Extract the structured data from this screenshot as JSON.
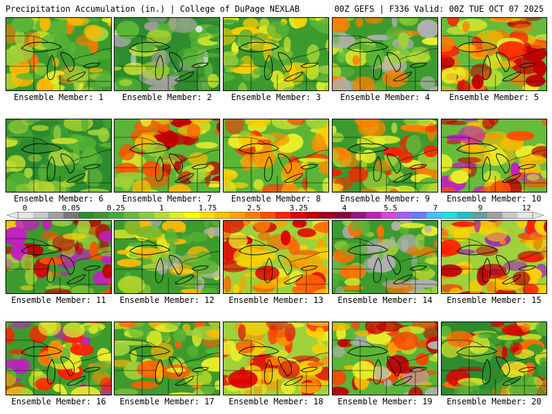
{
  "header": {
    "left_title": "Precipitation Accumulation (in.) | College of DuPage NEXLAB",
    "right_title": "00Z GEFS | F336 Valid: 00Z TUE OCT 07 2025"
  },
  "colorbar": {
    "tick_labels": [
      "0",
      "0.05",
      "0.25",
      "1",
      "1.75",
      "2.5",
      "3.25",
      "4",
      "5.5",
      "7",
      "9",
      "12"
    ],
    "colors": [
      "#e6e6e6",
      "#c8c8c8",
      "#a0a0a0",
      "#787878",
      "#2e8b2e",
      "#3a9a30",
      "#4aa83a",
      "#66bb3a",
      "#8ccc3a",
      "#b4dc30",
      "#e0ee28",
      "#ffff00",
      "#ffe000",
      "#ffc000",
      "#ffa000",
      "#ff8000",
      "#ff5000",
      "#ff2000",
      "#e00000",
      "#c00000",
      "#a00020",
      "#900040",
      "#a01080",
      "#c020c0",
      "#e040e0",
      "#a060ff",
      "#6080ff",
      "#40c0ff",
      "#20e0e0",
      "#20c0c0",
      "#60a0a0",
      "#a0a0a0",
      "#c8c8c8",
      "#e6e6e6"
    ]
  },
  "panels": [
    {
      "label": "Ensemble Member: 1",
      "palette": [
        "#3d9b2e",
        "#5ab536",
        "#9fd13a",
        "#e8ee2a",
        "#ffb800",
        "#ff7800"
      ]
    },
    {
      "label": "Ensemble Member: 2",
      "palette": [
        "#2e8b2e",
        "#3d9b2e",
        "#5ab536",
        "#a0a0a0",
        "#e0e0e0",
        "#c8e030"
      ]
    },
    {
      "label": "Ensemble Member: 3",
      "palette": [
        "#3d9b2e",
        "#5ab536",
        "#9fd13a",
        "#e8ee2a",
        "#ffd000",
        "#4aa83a"
      ]
    },
    {
      "label": "Ensemble Member: 4",
      "palette": [
        "#3d9b2e",
        "#5ab536",
        "#9fd13a",
        "#b0b0b0",
        "#e8ee2a",
        "#ff8000"
      ]
    },
    {
      "label": "Ensemble Member: 5",
      "palette": [
        "#66bb3a",
        "#e8ee2a",
        "#ffb800",
        "#ff7800",
        "#ff2000",
        "#c00000"
      ]
    },
    {
      "label": "Ensemble Member: 6",
      "palette": [
        "#2e8b2e",
        "#3d9b2e",
        "#5ab536",
        "#9fd13a",
        "#4aa83a",
        "#c8e030"
      ]
    },
    {
      "label": "Ensemble Member: 7",
      "palette": [
        "#5ab536",
        "#9fd13a",
        "#e8ee2a",
        "#ffb800",
        "#ff5000",
        "#c00000"
      ]
    },
    {
      "label": "Ensemble Member: 8",
      "palette": [
        "#5ab536",
        "#9fd13a",
        "#e8ee2a",
        "#ffd000",
        "#ff9000",
        "#ff3000"
      ]
    },
    {
      "label": "Ensemble Member: 9",
      "palette": [
        "#3d9b2e",
        "#5ab536",
        "#9fd13a",
        "#e8ee2a",
        "#ff8000",
        "#ff2000"
      ]
    },
    {
      "label": "Ensemble Member: 10",
      "palette": [
        "#66bb3a",
        "#e8ee2a",
        "#ffb800",
        "#ff5000",
        "#c00000",
        "#c020c0"
      ]
    },
    {
      "label": "Ensemble Member: 11",
      "palette": [
        "#3d9b2e",
        "#9fd13a",
        "#ffd000",
        "#ff5000",
        "#c00000",
        "#c020c0"
      ]
    },
    {
      "label": "Ensemble Member: 12",
      "palette": [
        "#3d9b2e",
        "#5ab536",
        "#9fd13a",
        "#b0b0b0",
        "#e8ee2a",
        "#ffb800"
      ]
    },
    {
      "label": "Ensemble Member: 13",
      "palette": [
        "#9fd13a",
        "#e8ee2a",
        "#ffd000",
        "#ffa000",
        "#ff6000",
        "#e00000"
      ]
    },
    {
      "label": "Ensemble Member: 14",
      "palette": [
        "#3d9b2e",
        "#5ab536",
        "#9fd13a",
        "#b0b0b0",
        "#e8ee2a",
        "#ff7000"
      ]
    },
    {
      "label": "Ensemble Member: 15",
      "palette": [
        "#9fd13a",
        "#ffd000",
        "#ff8000",
        "#ff2000",
        "#c00000",
        "#a020c0"
      ]
    },
    {
      "label": "Ensemble Member: 16",
      "palette": [
        "#3d9b2e",
        "#5ab536",
        "#e8ee2a",
        "#ff9000",
        "#ff2000",
        "#c020c0"
      ]
    },
    {
      "label": "Ensemble Member: 17",
      "palette": [
        "#3d9b2e",
        "#5ab536",
        "#9fd13a",
        "#e8ee2a",
        "#ffb800",
        "#ff6000"
      ]
    },
    {
      "label": "Ensemble Member: 18",
      "palette": [
        "#9fd13a",
        "#e8ee2a",
        "#ffd000",
        "#ff9000",
        "#ff4000",
        "#e00000"
      ]
    },
    {
      "label": "Ensemble Member: 19",
      "palette": [
        "#5ab536",
        "#b0b0b0",
        "#e8ee2a",
        "#ffb800",
        "#ff4000",
        "#c00000"
      ]
    },
    {
      "label": "Ensemble Member: 20",
      "palette": [
        "#2e8b2e",
        "#3d9b2e",
        "#5ab536",
        "#e8ee2a",
        "#ff7000",
        "#e00000"
      ]
    }
  ]
}
